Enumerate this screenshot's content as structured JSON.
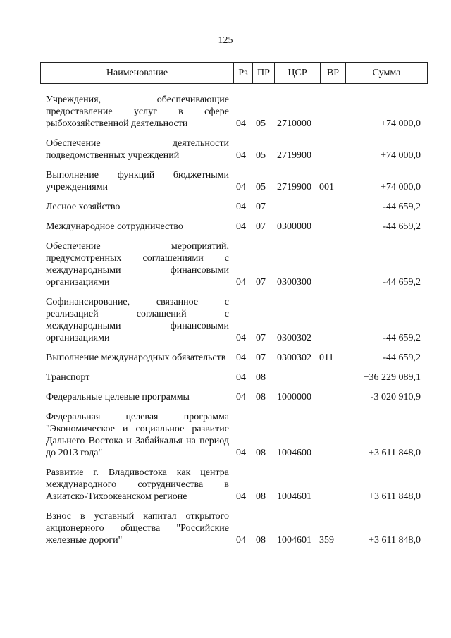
{
  "page_number": "125",
  "header": {
    "name": "Наименование",
    "rz": "Рз",
    "pr": "ПР",
    "csr": "ЦСР",
    "vr": "ВР",
    "sum": "Сумма"
  },
  "rows": [
    {
      "name": "Учреждения, обеспечивающие предоставление услуг в сфере рыбохозяйственной деятельности",
      "rz": "04",
      "pr": "05",
      "csr": "2710000",
      "vr": "",
      "sum": "+74 000,0"
    },
    {
      "name": "Обеспечение деятельности подведомственных учреждений",
      "rz": "04",
      "pr": "05",
      "csr": "2719900",
      "vr": "",
      "sum": "+74 000,0"
    },
    {
      "name": "Выполнение функций бюджетными учреждениями",
      "rz": "04",
      "pr": "05",
      "csr": "2719900",
      "vr": "001",
      "sum": "+74 000,0"
    },
    {
      "name": "Лесное хозяйство",
      "rz": "04",
      "pr": "07",
      "csr": "",
      "vr": "",
      "sum": "-44 659,2"
    },
    {
      "name": "Международное сотрудничество",
      "rz": "04",
      "pr": "07",
      "csr": "0300000",
      "vr": "",
      "sum": "-44 659,2"
    },
    {
      "name": "Обеспечение мероприятий, предусмотренных соглашениями с международными финансовыми организациями",
      "rz": "04",
      "pr": "07",
      "csr": "0300300",
      "vr": "",
      "sum": "-44 659,2"
    },
    {
      "name": "Софинансирование, связанное с реализацией соглашений с международными финансовыми организациями",
      "rz": "04",
      "pr": "07",
      "csr": "0300302",
      "vr": "",
      "sum": "-44 659,2"
    },
    {
      "name": "Выполнение международных обязательств",
      "rz": "04",
      "pr": "07",
      "csr": "0300302",
      "vr": "011",
      "sum": "-44 659,2"
    },
    {
      "name": "Транспорт",
      "rz": "04",
      "pr": "08",
      "csr": "",
      "vr": "",
      "sum": "+36 229 089,1"
    },
    {
      "name": "Федеральные целевые программы",
      "rz": "04",
      "pr": "08",
      "csr": "1000000",
      "vr": "",
      "sum": "-3 020 910,9"
    },
    {
      "name": "Федеральная целевая программа \"Экономическое и социальное развитие Дальнего Востока и Забайкалья на период до 2013 года\"",
      "rz": "04",
      "pr": "08",
      "csr": "1004600",
      "vr": "",
      "sum": "+3 611 848,0"
    },
    {
      "name": "Развитие г. Владивостока как центра международного сотрудничества в Азиатско-Тихоокеанском регионе",
      "rz": "04",
      "pr": "08",
      "csr": "1004601",
      "vr": "",
      "sum": "+3 611 848,0"
    },
    {
      "name": "Взнос в уставный капитал открытого акционерного общества \"Российские железные дороги\"",
      "rz": "04",
      "pr": "08",
      "csr": "1004601",
      "vr": "359",
      "sum": "+3 611 848,0"
    }
  ]
}
